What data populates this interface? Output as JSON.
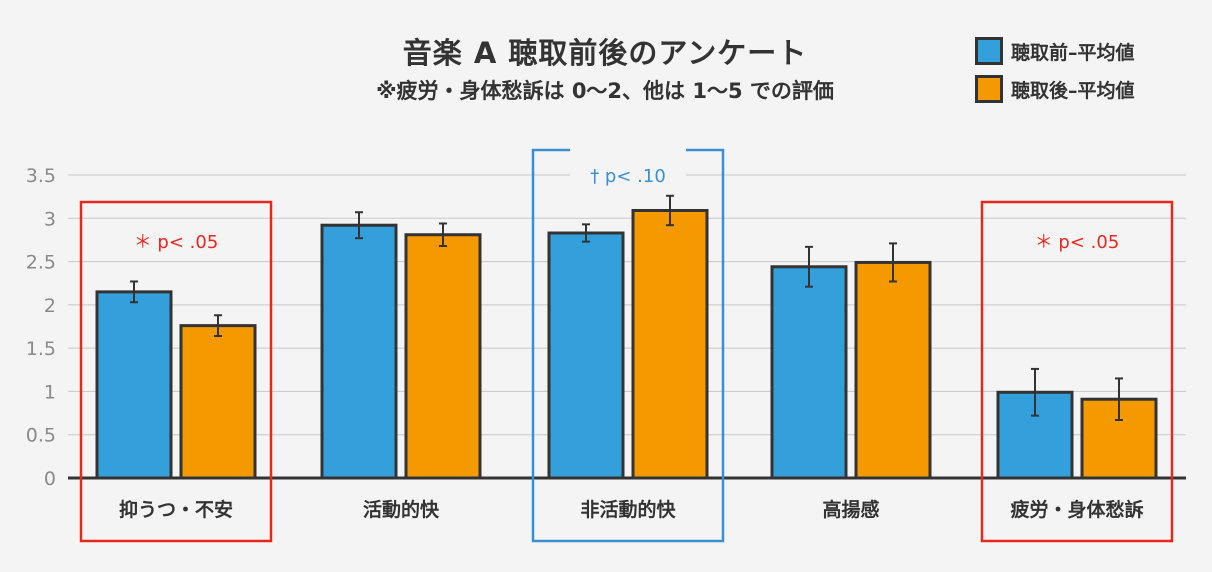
{
  "title": "音楽 A 聴取前後のアンケート",
  "subtitle": "※疲労・身体愁訴は 0〜2、他は 1〜5 での評価",
  "chart_data": {
    "type": "bar",
    "categories": [
      "抑うつ・不安",
      "活動的快",
      "非活動的快",
      "高揚感",
      "疲労・身体愁訴"
    ],
    "series": [
      {
        "name": "聴取前–平均値",
        "color": "#33a0dc",
        "values": [
          2.15,
          2.92,
          2.83,
          2.44,
          0.99
        ],
        "errors": [
          0.12,
          0.15,
          0.1,
          0.23,
          0.27
        ]
      },
      {
        "name": "聴取後–平均値",
        "color": "#f49a00",
        "values": [
          1.76,
          2.81,
          3.09,
          2.49,
          0.91
        ],
        "errors": [
          0.12,
          0.13,
          0.17,
          0.22,
          0.24
        ]
      }
    ],
    "yticks": [
      "0",
      "0.5",
      "1",
      "1.5",
      "2",
      "2.5",
      "3",
      "3.5"
    ],
    "ylim": [
      0,
      3.5
    ],
    "grid": true,
    "legend_position": "top-right",
    "annotations": [
      {
        "category": 0,
        "text": "＊ p< .05",
        "color": "#e8281e"
      },
      {
        "category": 2,
        "text": "† p< .10",
        "color": "#3a8fd0"
      },
      {
        "category": 4,
        "text": "＊ p< .05",
        "color": "#e8281e"
      }
    ]
  }
}
